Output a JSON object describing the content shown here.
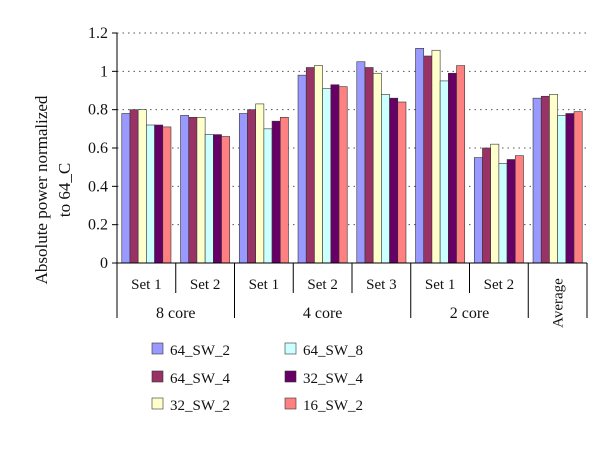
{
  "chart_data": {
    "type": "bar",
    "ylabel_lines": [
      "Absolute power normalized",
      "to 64_C"
    ],
    "xlabel": "",
    "ylim": [
      0,
      1.2
    ],
    "yticks": [
      "0",
      "0.2",
      "0.4",
      "0.6",
      "0.8",
      "1",
      "1.2"
    ],
    "ytick_values": [
      0,
      0.2,
      0.4,
      0.6,
      0.8,
      1,
      1.2
    ],
    "grid": "horizontal dotted",
    "legend_position": "bottom",
    "categories": [
      "Set 1",
      "Set 2",
      "Set 1",
      "Set 2",
      "Set 3",
      "Set 1",
      "Set 2",
      "Average"
    ],
    "groups": [
      {
        "label": "8 core",
        "span": 2
      },
      {
        "label": "4 core",
        "span": 3
      },
      {
        "label": "2 core",
        "span": 2
      },
      {
        "label": "",
        "span": 1
      }
    ],
    "series": [
      {
        "name": "64_SW_2",
        "color": "#9999ff",
        "values": [
          0.78,
          0.77,
          0.78,
          0.98,
          1.05,
          1.12,
          0.55,
          0.86
        ]
      },
      {
        "name": "64_SW_4",
        "color": "#993366",
        "values": [
          0.8,
          0.76,
          0.8,
          1.02,
          1.02,
          1.08,
          0.6,
          0.87
        ]
      },
      {
        "name": "32_SW_2",
        "color": "#ffffcc",
        "values": [
          0.8,
          0.76,
          0.83,
          1.03,
          0.99,
          1.11,
          0.62,
          0.88
        ]
      },
      {
        "name": "64_SW_8",
        "color": "#ccffff",
        "values": [
          0.72,
          0.67,
          0.7,
          0.91,
          0.88,
          0.95,
          0.52,
          0.77
        ]
      },
      {
        "name": "32_SW_4",
        "color": "#660066",
        "values": [
          0.72,
          0.67,
          0.74,
          0.93,
          0.86,
          0.99,
          0.54,
          0.78
        ]
      },
      {
        "name": "16_SW_2",
        "color": "#ff8080",
        "values": [
          0.71,
          0.66,
          0.76,
          0.92,
          0.84,
          1.03,
          0.56,
          0.79
        ]
      }
    ]
  }
}
